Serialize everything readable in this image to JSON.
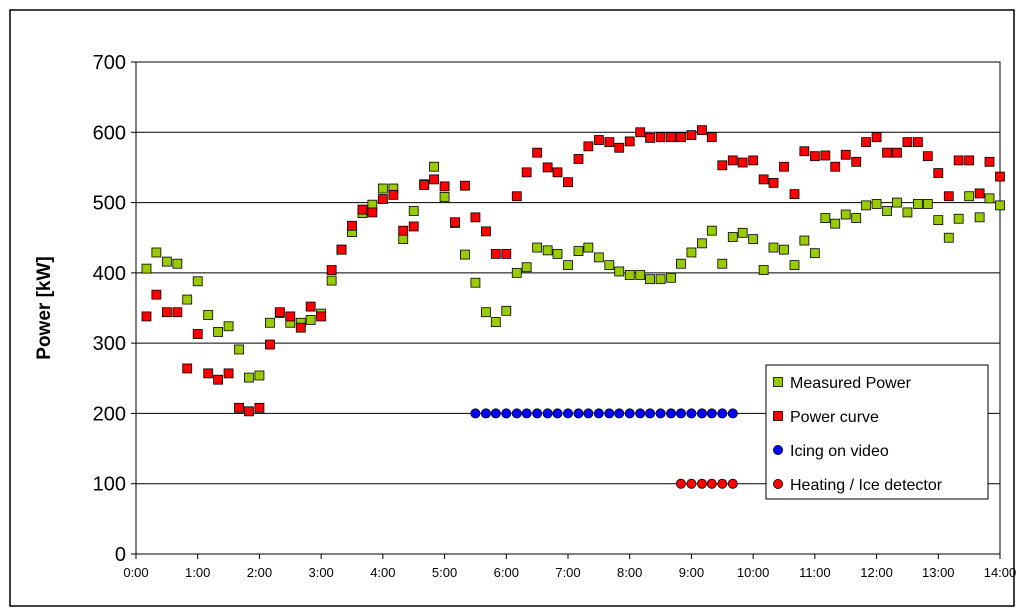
{
  "chart_data": {
    "type": "scatter",
    "title": "",
    "xlabel": "",
    "ylabel": "Power [kW]",
    "ylim": [
      0,
      700
    ],
    "yticks": [
      0,
      100,
      200,
      300,
      400,
      500,
      600,
      700
    ],
    "xlim": [
      0,
      14
    ],
    "xtick_labels": [
      "0:00",
      "1:00",
      "2:00",
      "3:00",
      "4:00",
      "5:00",
      "6:00",
      "7:00",
      "8:00",
      "9:00",
      "10:00",
      "11:00",
      "12:00",
      "13:00",
      "14:00"
    ],
    "grid": "horizontal",
    "legend_position": "bottom-right",
    "series": [
      {
        "name": "Measured Power",
        "marker": "square",
        "color": "#99cc00",
        "points": [
          [
            0.17,
            406
          ],
          [
            0.33,
            429
          ],
          [
            0.5,
            416
          ],
          [
            0.67,
            413
          ],
          [
            0.83,
            362
          ],
          [
            1.0,
            388
          ],
          [
            1.17,
            340
          ],
          [
            1.33,
            316
          ],
          [
            1.5,
            324
          ],
          [
            1.67,
            291
          ],
          [
            1.83,
            251
          ],
          [
            2.0,
            254
          ],
          [
            2.17,
            329
          ],
          [
            2.33,
            343
          ],
          [
            2.5,
            329
          ],
          [
            2.67,
            329
          ],
          [
            2.83,
            333
          ],
          [
            3.0,
            342
          ],
          [
            3.17,
            389
          ],
          [
            3.33,
            433
          ],
          [
            3.5,
            458
          ],
          [
            3.67,
            485
          ],
          [
            3.83,
            497
          ],
          [
            4.0,
            520
          ],
          [
            4.17,
            520
          ],
          [
            4.33,
            448
          ],
          [
            4.5,
            488
          ],
          [
            4.67,
            526
          ],
          [
            4.83,
            551
          ],
          [
            5.0,
            508
          ],
          [
            5.17,
            471
          ],
          [
            5.33,
            426
          ],
          [
            5.5,
            386
          ],
          [
            5.67,
            344
          ],
          [
            5.83,
            330
          ],
          [
            6.0,
            346
          ],
          [
            6.17,
            400
          ],
          [
            6.33,
            408
          ],
          [
            6.5,
            436
          ],
          [
            6.67,
            432
          ],
          [
            6.83,
            427
          ],
          [
            7.0,
            411
          ],
          [
            7.17,
            431
          ],
          [
            7.33,
            436
          ],
          [
            7.5,
            422
          ],
          [
            7.67,
            411
          ],
          [
            7.83,
            402
          ],
          [
            8.0,
            397
          ],
          [
            8.17,
            397
          ],
          [
            8.33,
            391
          ],
          [
            8.5,
            391
          ],
          [
            8.67,
            393
          ],
          [
            8.83,
            413
          ],
          [
            9.0,
            429
          ],
          [
            9.17,
            442
          ],
          [
            9.33,
            460
          ],
          [
            9.5,
            413
          ],
          [
            9.67,
            451
          ],
          [
            9.83,
            457
          ],
          [
            10.0,
            448
          ],
          [
            10.17,
            404
          ],
          [
            10.33,
            436
          ],
          [
            10.5,
            433
          ],
          [
            10.67,
            411
          ],
          [
            10.83,
            446
          ],
          [
            11.0,
            428
          ],
          [
            11.17,
            478
          ],
          [
            11.33,
            470
          ],
          [
            11.5,
            483
          ],
          [
            11.67,
            478
          ],
          [
            11.83,
            496
          ],
          [
            12.0,
            498
          ],
          [
            12.17,
            488
          ],
          [
            12.33,
            500
          ],
          [
            12.5,
            486
          ],
          [
            12.67,
            498
          ],
          [
            12.83,
            498
          ],
          [
            13.0,
            475
          ],
          [
            13.17,
            450
          ],
          [
            13.33,
            477
          ],
          [
            13.5,
            509
          ],
          [
            13.67,
            479
          ],
          [
            13.83,
            506
          ],
          [
            14.0,
            496
          ]
        ]
      },
      {
        "name": "Power curve",
        "marker": "square",
        "color": "#ff0000",
        "points": [
          [
            0.17,
            338
          ],
          [
            0.33,
            369
          ],
          [
            0.5,
            344
          ],
          [
            0.67,
            344
          ],
          [
            0.83,
            264
          ],
          [
            1.0,
            313
          ],
          [
            1.17,
            257
          ],
          [
            1.33,
            248
          ],
          [
            1.5,
            257
          ],
          [
            1.67,
            208
          ],
          [
            1.83,
            203
          ],
          [
            2.0,
            208
          ],
          [
            2.17,
            298
          ],
          [
            2.33,
            344
          ],
          [
            2.5,
            338
          ],
          [
            2.67,
            322
          ],
          [
            2.83,
            352
          ],
          [
            3.0,
            338
          ],
          [
            3.17,
            404
          ],
          [
            3.33,
            433
          ],
          [
            3.5,
            467
          ],
          [
            3.67,
            490
          ],
          [
            3.83,
            486
          ],
          [
            4.0,
            505
          ],
          [
            4.17,
            511
          ],
          [
            4.33,
            460
          ],
          [
            4.5,
            466
          ],
          [
            4.67,
            525
          ],
          [
            4.83,
            533
          ],
          [
            5.0,
            523
          ],
          [
            5.17,
            472
          ],
          [
            5.33,
            524
          ],
          [
            5.5,
            479
          ],
          [
            5.67,
            459
          ],
          [
            5.83,
            427
          ],
          [
            6.0,
            427
          ],
          [
            6.17,
            509
          ],
          [
            6.33,
            543
          ],
          [
            6.5,
            571
          ],
          [
            6.67,
            550
          ],
          [
            6.83,
            543
          ],
          [
            7.0,
            529
          ],
          [
            7.17,
            562
          ],
          [
            7.33,
            580
          ],
          [
            7.5,
            589
          ],
          [
            7.67,
            586
          ],
          [
            7.83,
            578
          ],
          [
            8.0,
            587
          ],
          [
            8.17,
            600
          ],
          [
            8.33,
            592
          ],
          [
            8.5,
            593
          ],
          [
            8.67,
            593
          ],
          [
            8.83,
            593
          ],
          [
            9.0,
            596
          ],
          [
            9.17,
            603
          ],
          [
            9.33,
            593
          ],
          [
            9.5,
            553
          ],
          [
            9.67,
            560
          ],
          [
            9.83,
            557
          ],
          [
            10.0,
            560
          ],
          [
            10.17,
            533
          ],
          [
            10.33,
            528
          ],
          [
            10.5,
            551
          ],
          [
            10.67,
            512
          ],
          [
            10.83,
            573
          ],
          [
            11.0,
            566
          ],
          [
            11.17,
            567
          ],
          [
            11.33,
            551
          ],
          [
            11.5,
            568
          ],
          [
            11.67,
            558
          ],
          [
            11.83,
            586
          ],
          [
            12.0,
            593
          ],
          [
            12.17,
            571
          ],
          [
            12.33,
            571
          ],
          [
            12.5,
            586
          ],
          [
            12.67,
            586
          ],
          [
            12.83,
            566
          ],
          [
            13.0,
            542
          ],
          [
            13.17,
            509
          ],
          [
            13.33,
            560
          ],
          [
            13.5,
            560
          ],
          [
            13.67,
            513
          ],
          [
            13.83,
            558
          ],
          [
            14.0,
            537
          ]
        ]
      },
      {
        "name": "Icing on video",
        "marker": "circle",
        "color": "#0000ff",
        "points": [
          [
            5.5,
            200
          ],
          [
            5.67,
            200
          ],
          [
            5.83,
            200
          ],
          [
            6.0,
            200
          ],
          [
            6.17,
            200
          ],
          [
            6.33,
            200
          ],
          [
            6.5,
            200
          ],
          [
            6.67,
            200
          ],
          [
            6.83,
            200
          ],
          [
            7.0,
            200
          ],
          [
            7.17,
            200
          ],
          [
            7.33,
            200
          ],
          [
            7.5,
            200
          ],
          [
            7.67,
            200
          ],
          [
            7.83,
            200
          ],
          [
            8.0,
            200
          ],
          [
            8.17,
            200
          ],
          [
            8.33,
            200
          ],
          [
            8.5,
            200
          ],
          [
            8.67,
            200
          ],
          [
            8.83,
            200
          ],
          [
            9.0,
            200
          ],
          [
            9.17,
            200
          ],
          [
            9.33,
            200
          ],
          [
            9.5,
            200
          ],
          [
            9.67,
            200
          ]
        ]
      },
      {
        "name": "Heating / Ice detector",
        "marker": "circle",
        "color": "#ff0000",
        "points": [
          [
            8.83,
            100
          ],
          [
            9.0,
            100
          ],
          [
            9.17,
            100
          ],
          [
            9.33,
            100
          ],
          [
            9.5,
            100
          ],
          [
            9.67,
            100
          ]
        ]
      }
    ]
  }
}
